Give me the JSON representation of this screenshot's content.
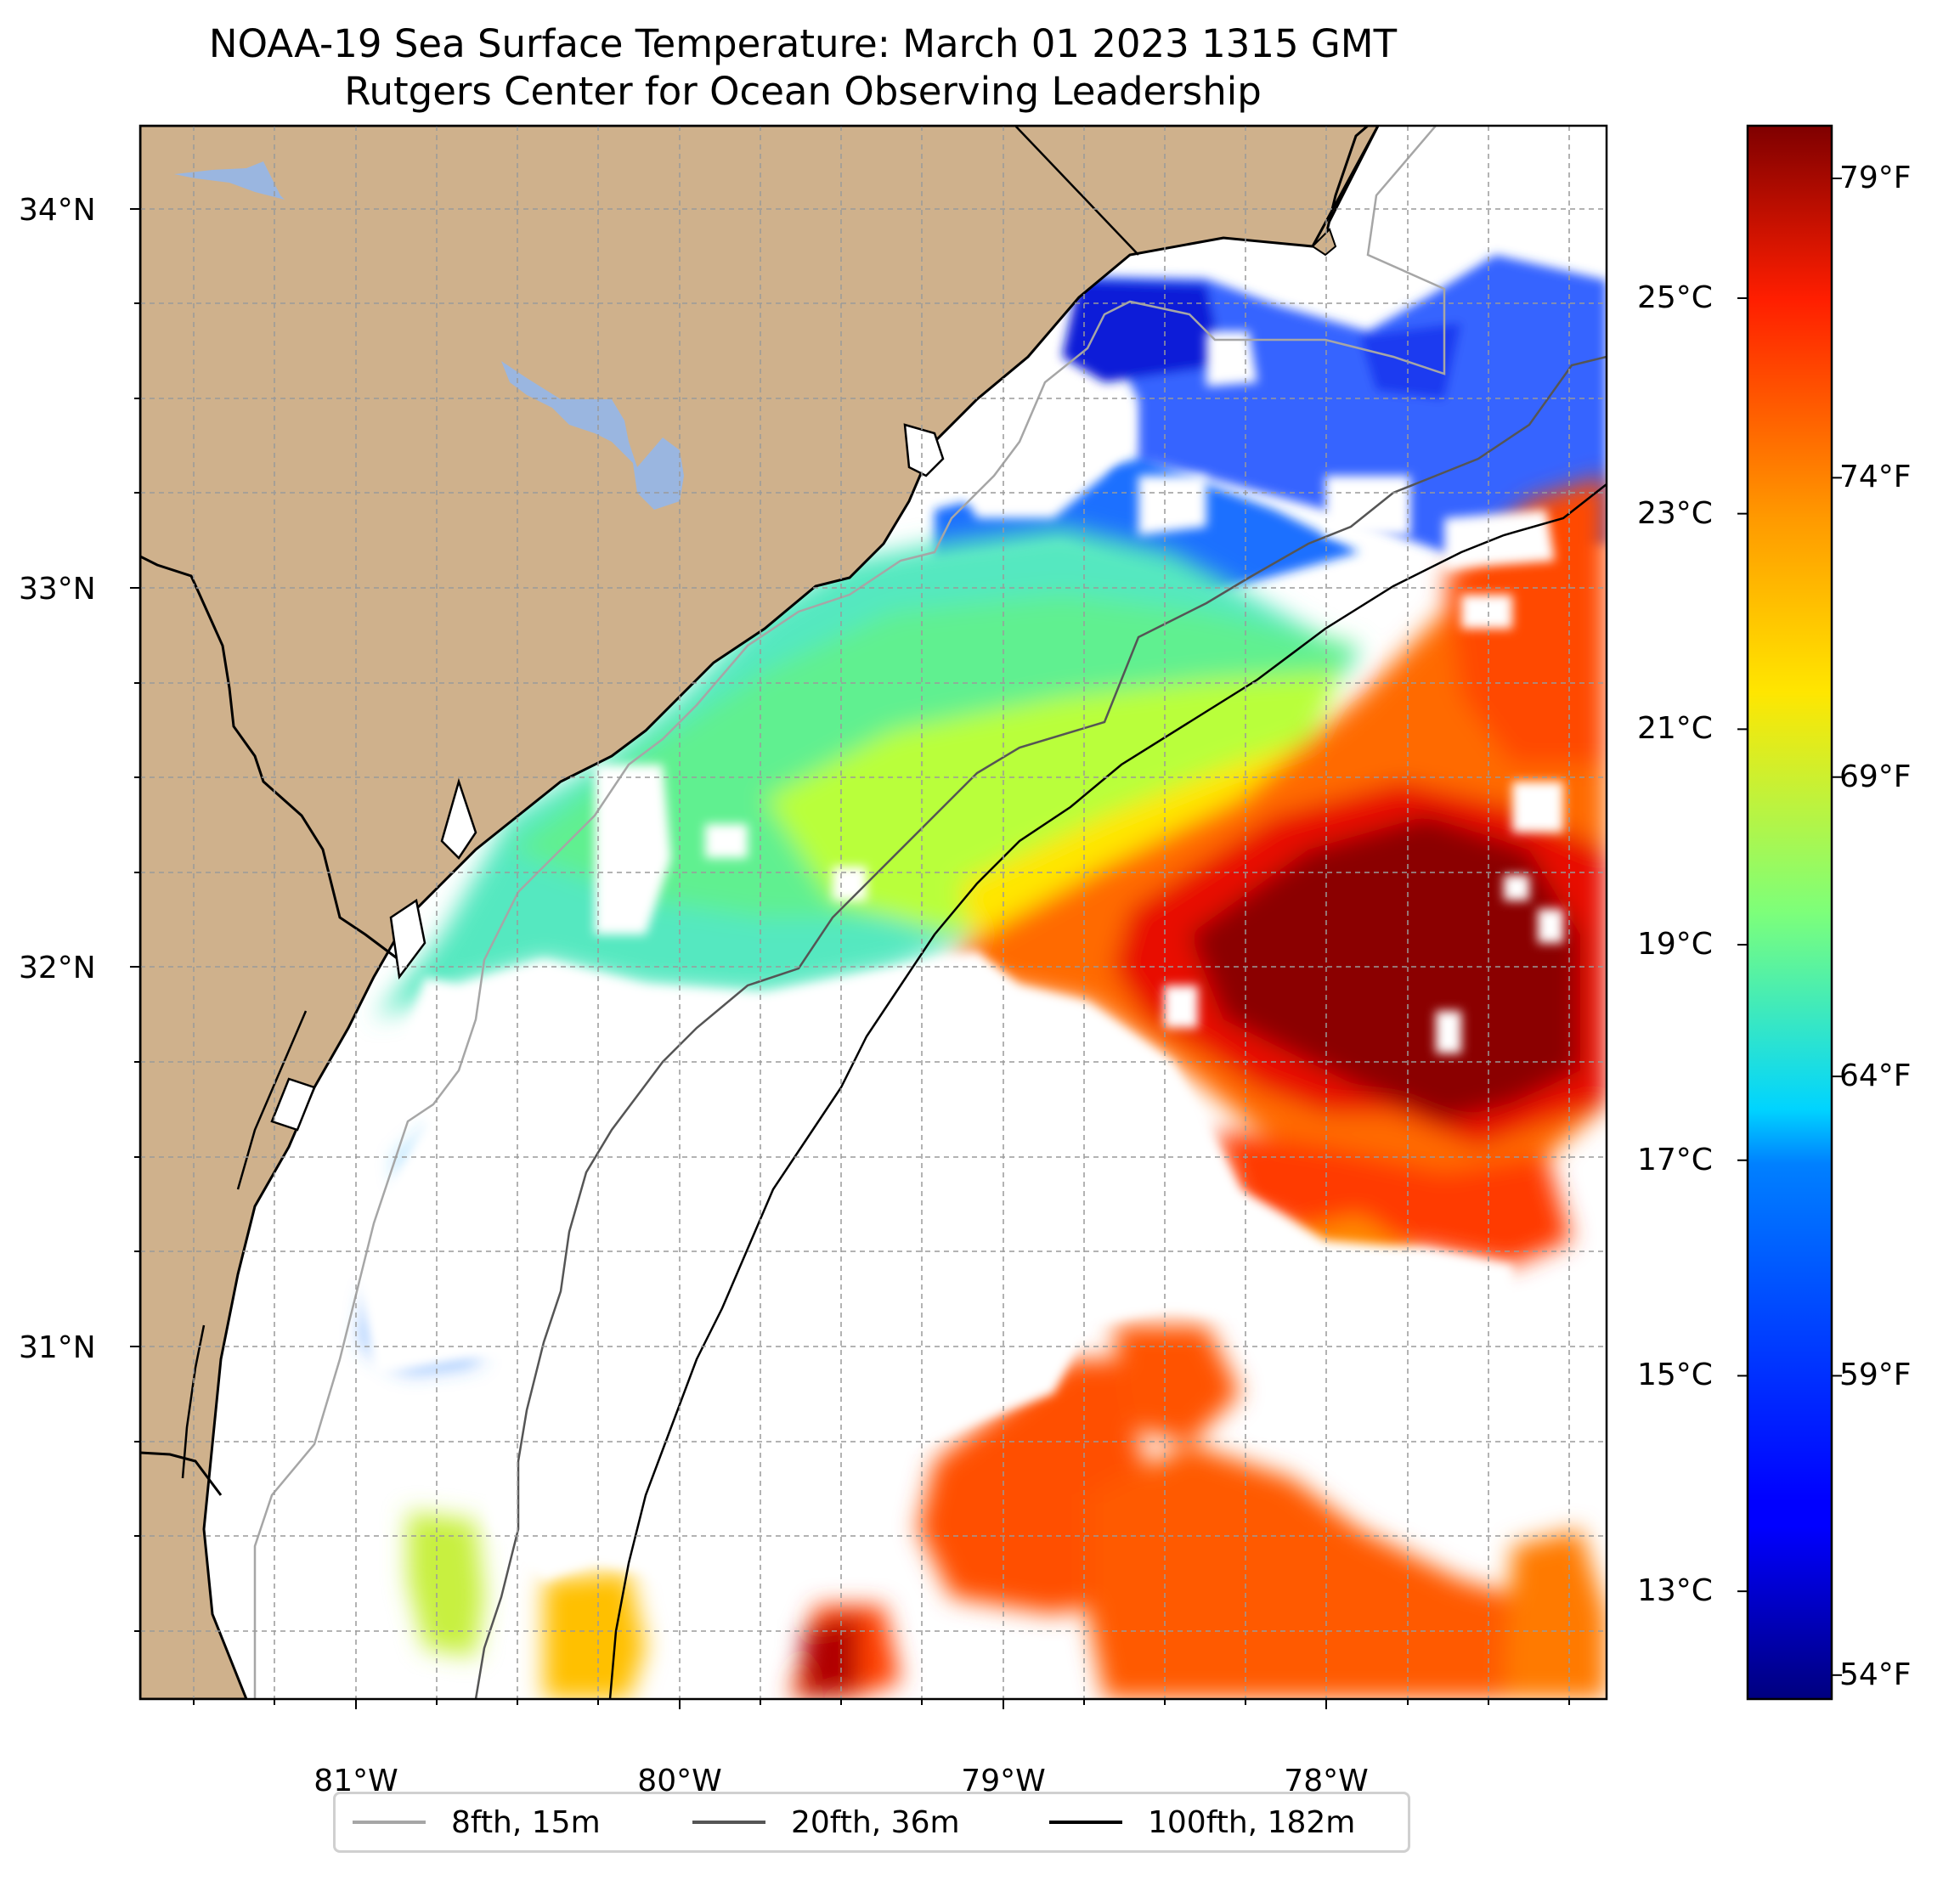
{
  "title": {
    "line1": "NOAA-19 Sea Surface Temperature: March 01 2023 1315 GMT",
    "line2": "Rutgers Center for Ocean Observing Leadership"
  },
  "map": {
    "lon_range": [
      -81.67,
      -77.14
    ],
    "lat_range": [
      30.07,
      34.22
    ],
    "land_color": "#cfb18c",
    "lake_color": "#9ab6e0",
    "ocean_nodata_color": "#ffffff",
    "gridlines": "dashed",
    "lat_ticks": [
      {
        "value": 34,
        "label": "34°N"
      },
      {
        "value": 33,
        "label": "33°N"
      },
      {
        "value": 32,
        "label": "32°N"
      },
      {
        "value": 31,
        "label": "31°N"
      }
    ],
    "lon_ticks": [
      {
        "value": -81,
        "label": "81°W"
      },
      {
        "value": -80,
        "label": "80°W"
      },
      {
        "value": -79,
        "label": "79°W"
      },
      {
        "value": -78,
        "label": "78°W"
      }
    ]
  },
  "colorbar": {
    "colormap": "jet",
    "range_c": [
      12.0,
      26.6
    ],
    "celsius_ticks": [
      {
        "value": 25,
        "label": "25°C"
      },
      {
        "value": 23,
        "label": "23°C"
      },
      {
        "value": 21,
        "label": "21°C"
      },
      {
        "value": 19,
        "label": "19°C"
      },
      {
        "value": 17,
        "label": "17°C"
      },
      {
        "value": 15,
        "label": "15°C"
      },
      {
        "value": 13,
        "label": "13°C"
      }
    ],
    "fahrenheit_ticks": [
      {
        "value": 79,
        "label": "79°F"
      },
      {
        "value": 74,
        "label": "74°F"
      },
      {
        "value": 69,
        "label": "69°F"
      },
      {
        "value": 64,
        "label": "64°F"
      },
      {
        "value": 59,
        "label": "59°F"
      },
      {
        "value": 54,
        "label": "54°F"
      }
    ]
  },
  "legend": {
    "placement": "below map",
    "items": [
      {
        "label": "8fth, 15m",
        "color": "#a6a6a6"
      },
      {
        "label": "20fth, 36m",
        "color": "#555555"
      },
      {
        "label": "100fth, 182m",
        "color": "#000000"
      }
    ]
  }
}
